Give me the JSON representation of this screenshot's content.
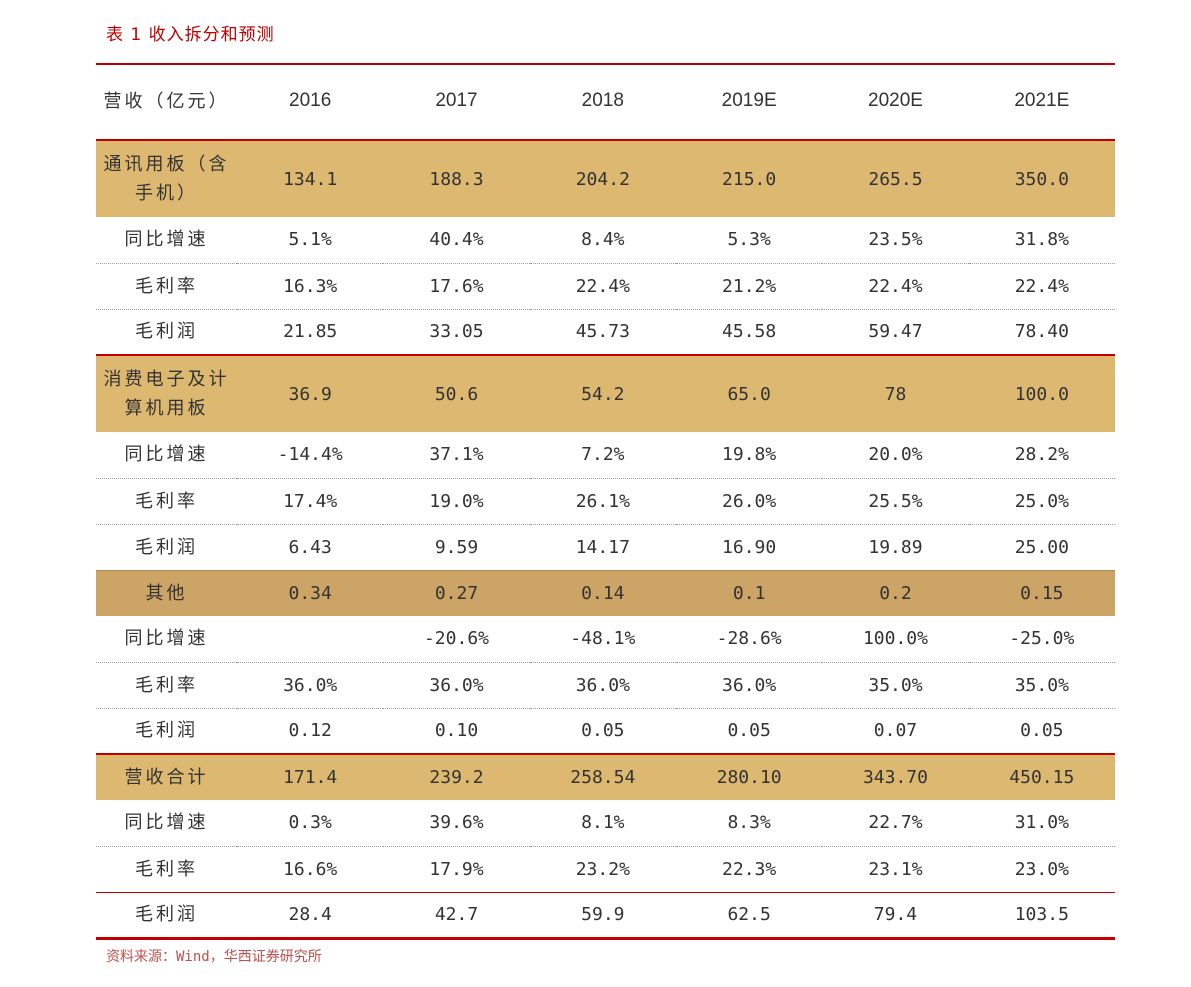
{
  "title": "表 1 收入拆分和预测",
  "source": "资料来源：Wind，华西证券研究所",
  "header": {
    "label": "营收（亿元）",
    "years": [
      "2016",
      "2017",
      "2018",
      "2019E",
      "2020E",
      "2021E"
    ]
  },
  "sections": [
    {
      "name": "通讯用板（含手机）",
      "revenue": [
        "134.1",
        "188.3",
        "204.2",
        "215.0",
        "265.5",
        "350.0"
      ],
      "rows": [
        {
          "label": "同比增速",
          "values": [
            "5.1%",
            "40.4%",
            "8.4%",
            "5.3%",
            "23.5%",
            "31.8%"
          ]
        },
        {
          "label": "毛利率",
          "values": [
            "16.3%",
            "17.6%",
            "22.4%",
            "21.2%",
            "22.4%",
            "22.4%"
          ]
        },
        {
          "label": "毛利润",
          "values": [
            "21.85",
            "33.05",
            "45.73",
            "45.58",
            "59.47",
            "78.40"
          ]
        }
      ]
    },
    {
      "name": "消费电子及计算机用板",
      "revenue": [
        "36.9",
        "50.6",
        "54.2",
        "65.0",
        "78",
        "100.0"
      ],
      "rows": [
        {
          "label": "同比增速",
          "values": [
            "-14.4%",
            "37.1%",
            "7.2%",
            "19.8%",
            "20.0%",
            "28.2%"
          ]
        },
        {
          "label": "毛利率",
          "values": [
            "17.4%",
            "19.0%",
            "26.1%",
            "26.0%",
            "25.5%",
            "25.0%"
          ]
        },
        {
          "label": "毛利润",
          "values": [
            "6.43",
            "9.59",
            "14.17",
            "16.90",
            "19.89",
            "25.00"
          ]
        }
      ]
    },
    {
      "name": "其他",
      "revenue": [
        "0.34",
        "0.27",
        "0.14",
        "0.1",
        "0.2",
        "0.15"
      ],
      "rows": [
        {
          "label": "同比增速",
          "values": [
            "",
            "-20.6%",
            "-48.1%",
            "-28.6%",
            "100.0%",
            "-25.0%"
          ]
        },
        {
          "label": "毛利率",
          "values": [
            "36.0%",
            "36.0%",
            "36.0%",
            "36.0%",
            "35.0%",
            "35.0%"
          ]
        },
        {
          "label": "毛利润",
          "values": [
            "0.12",
            "0.10",
            "0.05",
            "0.05",
            "0.07",
            "0.05"
          ]
        }
      ]
    },
    {
      "name": "营收合计",
      "revenue": [
        "171.4",
        "239.2",
        "258.54",
        "280.10",
        "343.70",
        "450.15"
      ],
      "rows": [
        {
          "label": "同比增速",
          "values": [
            "0.3%",
            "39.6%",
            "8.1%",
            "8.3%",
            "22.7%",
            "31.0%"
          ]
        },
        {
          "label": "毛利率",
          "values": [
            "16.6%",
            "17.9%",
            "23.2%",
            "22.3%",
            "23.1%",
            "23.0%"
          ]
        },
        {
          "label": "毛利润",
          "values": [
            "28.4",
            "42.7",
            "59.9",
            "62.5",
            "79.4",
            "103.5"
          ]
        }
      ]
    }
  ],
  "colors": {
    "title": "#c00000",
    "highlight": "#ddb870",
    "other_highlight": "#cba466",
    "rule": "#c00000"
  }
}
